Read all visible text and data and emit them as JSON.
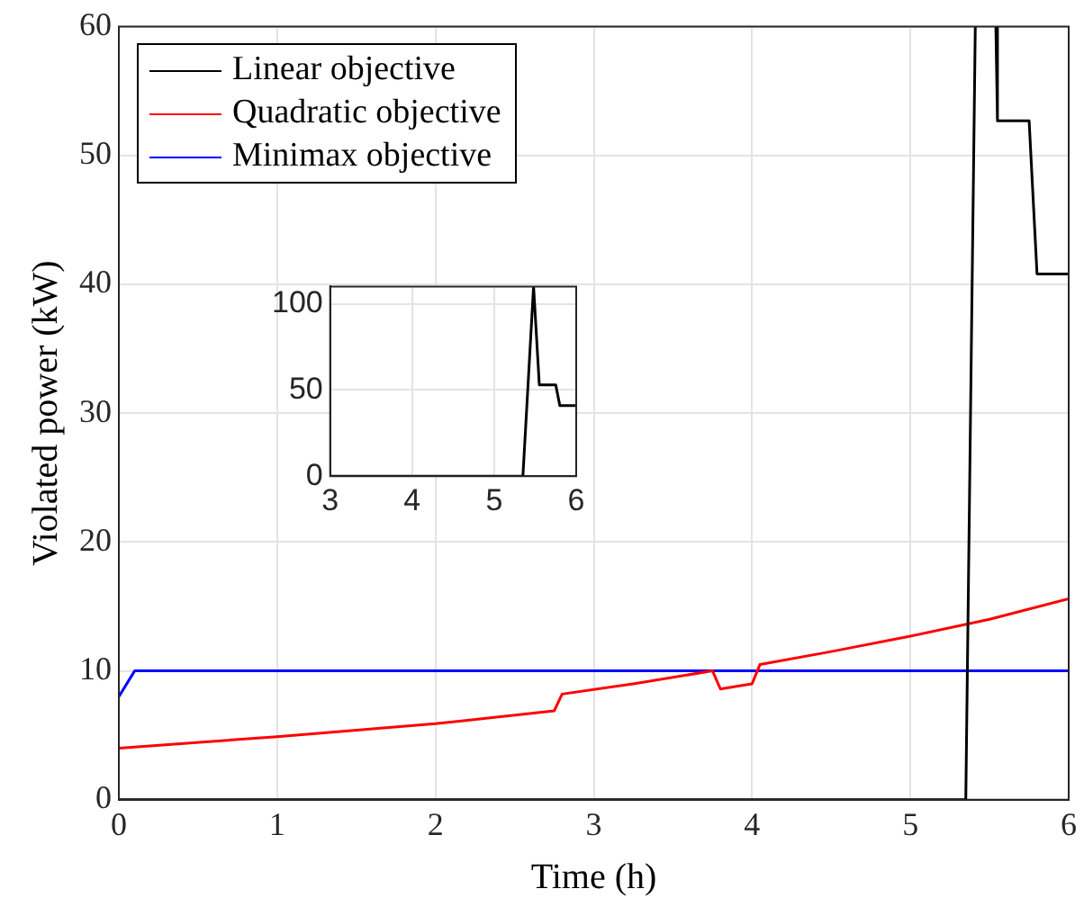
{
  "chart_data": [
    {
      "type": "line",
      "xlabel": "Time (h)",
      "ylabel": "Violated power (kW)",
      "xlim": [
        0,
        6
      ],
      "ylim": [
        0,
        60
      ],
      "xticks": [
        0,
        1,
        2,
        3,
        4,
        5,
        6
      ],
      "yticks": [
        0,
        10,
        20,
        30,
        40,
        50,
        60
      ],
      "grid": true,
      "legend": "top left",
      "series": [
        {
          "name": "Linear objective",
          "color": "#000000",
          "x": [
            0,
            5.35,
            5.41,
            5.48,
            5.54,
            5.55,
            5.75,
            5.8,
            6
          ],
          "values": [
            0,
            0,
            60,
            null,
            60,
            52.7,
            52.7,
            40.8,
            40.8
          ]
        },
        {
          "name": "Quadratic objective",
          "color": "#ff0000",
          "x": [
            0,
            1,
            2,
            2.75,
            2.8,
            3.25,
            3.75,
            3.8,
            4.0,
            4.05,
            4.5,
            5,
            5.5,
            6
          ],
          "values": [
            4.0,
            4.9,
            5.9,
            6.9,
            8.2,
            9.0,
            10.0,
            8.6,
            9.0,
            10.5,
            11.5,
            12.7,
            14.0,
            15.6
          ]
        },
        {
          "name": "Minimax objective",
          "color": "#0000ff",
          "x": [
            0,
            0.1,
            6
          ],
          "values": [
            8.0,
            10.0,
            10.0
          ]
        }
      ]
    },
    {
      "type": "line",
      "xlim": [
        3,
        6
      ],
      "ylim": [
        0,
        110
      ],
      "xticks": [
        3,
        4,
        5,
        6
      ],
      "yticks": [
        0,
        50,
        100
      ],
      "grid": true,
      "series": [
        {
          "color": "#000000",
          "x": [
            3,
            5.35,
            5.48,
            5.55,
            5.75,
            5.8,
            6
          ],
          "values": [
            0,
            0,
            110,
            53,
            53,
            41,
            41
          ]
        }
      ]
    }
  ]
}
